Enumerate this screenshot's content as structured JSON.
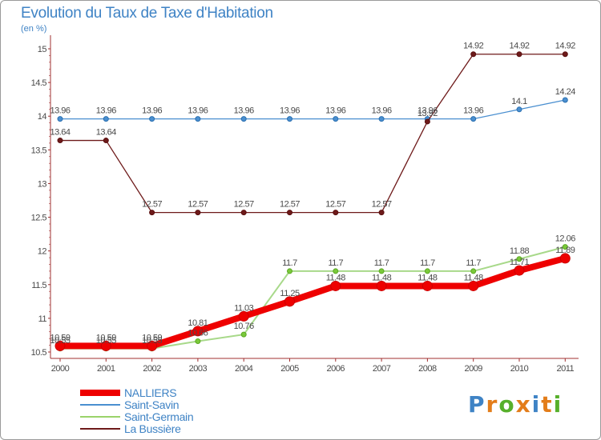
{
  "chart_data": {
    "type": "line",
    "title": "Evolution du Taux de Taxe d'Habitation",
    "subtitle": "(en %)",
    "categories": [
      "2000",
      "2001",
      "2002",
      "2003",
      "2004",
      "2005",
      "2006",
      "2007",
      "2008",
      "2009",
      "2010",
      "2011"
    ],
    "ylim": [
      10.5,
      15
    ],
    "yticks": [
      "10.5",
      "11",
      "11.5",
      "12",
      "12.5",
      "13",
      "13.5",
      "14",
      "14.5",
      "15"
    ],
    "grid": false,
    "legend_position": "bottom-left",
    "series": [
      {
        "name": "Saint-Savin",
        "color": "#4a8fd0",
        "values": [
          13.96,
          13.96,
          13.96,
          13.96,
          13.96,
          13.96,
          13.96,
          13.96,
          13.96,
          13.96,
          14.1,
          14.24
        ],
        "labels": [
          "13.96",
          "13.96",
          "13.96",
          "13.96",
          "13.96",
          "13.96",
          "13.96",
          "13.96",
          "13.96",
          "13.96",
          "14.1",
          "14.24"
        ]
      },
      {
        "name": "La Bussière",
        "color": "#6e1a1a",
        "values": [
          13.64,
          13.64,
          12.57,
          12.57,
          12.57,
          12.57,
          12.57,
          12.57,
          13.92,
          14.92,
          14.92,
          14.92
        ],
        "labels": [
          "13.64",
          "13.64",
          "12.57",
          "12.57",
          "12.57",
          "12.57",
          "12.57",
          "12.57",
          "13.92",
          "14.92",
          "14.92",
          "14.92"
        ]
      },
      {
        "name": "Saint-Germain",
        "color": "#9ad36a",
        "values": [
          10.55,
          10.55,
          10.55,
          10.66,
          10.76,
          11.7,
          11.7,
          11.7,
          11.7,
          11.7,
          11.88,
          12.06
        ],
        "labels": [
          "10.55",
          "10.55",
          "10.55",
          "10.66",
          "10.76",
          "11.7",
          "11.7",
          "11.7",
          "11.7",
          "11.7",
          "11.88",
          "12.06"
        ]
      },
      {
        "name": "NALLIERS",
        "color": "#ee0000",
        "values": [
          10.59,
          10.59,
          10.59,
          10.81,
          11.03,
          11.25,
          11.48,
          11.48,
          11.48,
          11.48,
          11.71,
          11.89
        ],
        "labels": [
          "10.59",
          "10.59",
          "10.59",
          "10.81",
          "11.03",
          "11.25",
          "11.48",
          "11.48",
          "11.48",
          "11.48",
          "11.71",
          "11.89"
        ]
      }
    ],
    "legend": [
      "NALLIERS",
      "Saint-Savin",
      "Saint-Germain",
      "La Bussière"
    ]
  },
  "logo": {
    "text": "Proxiti",
    "colors": [
      "#3f83c5",
      "#e37d1a",
      "#57b02b",
      "#e37d1a",
      "#3f83c5",
      "#e37d1a",
      "#57b02b"
    ]
  }
}
